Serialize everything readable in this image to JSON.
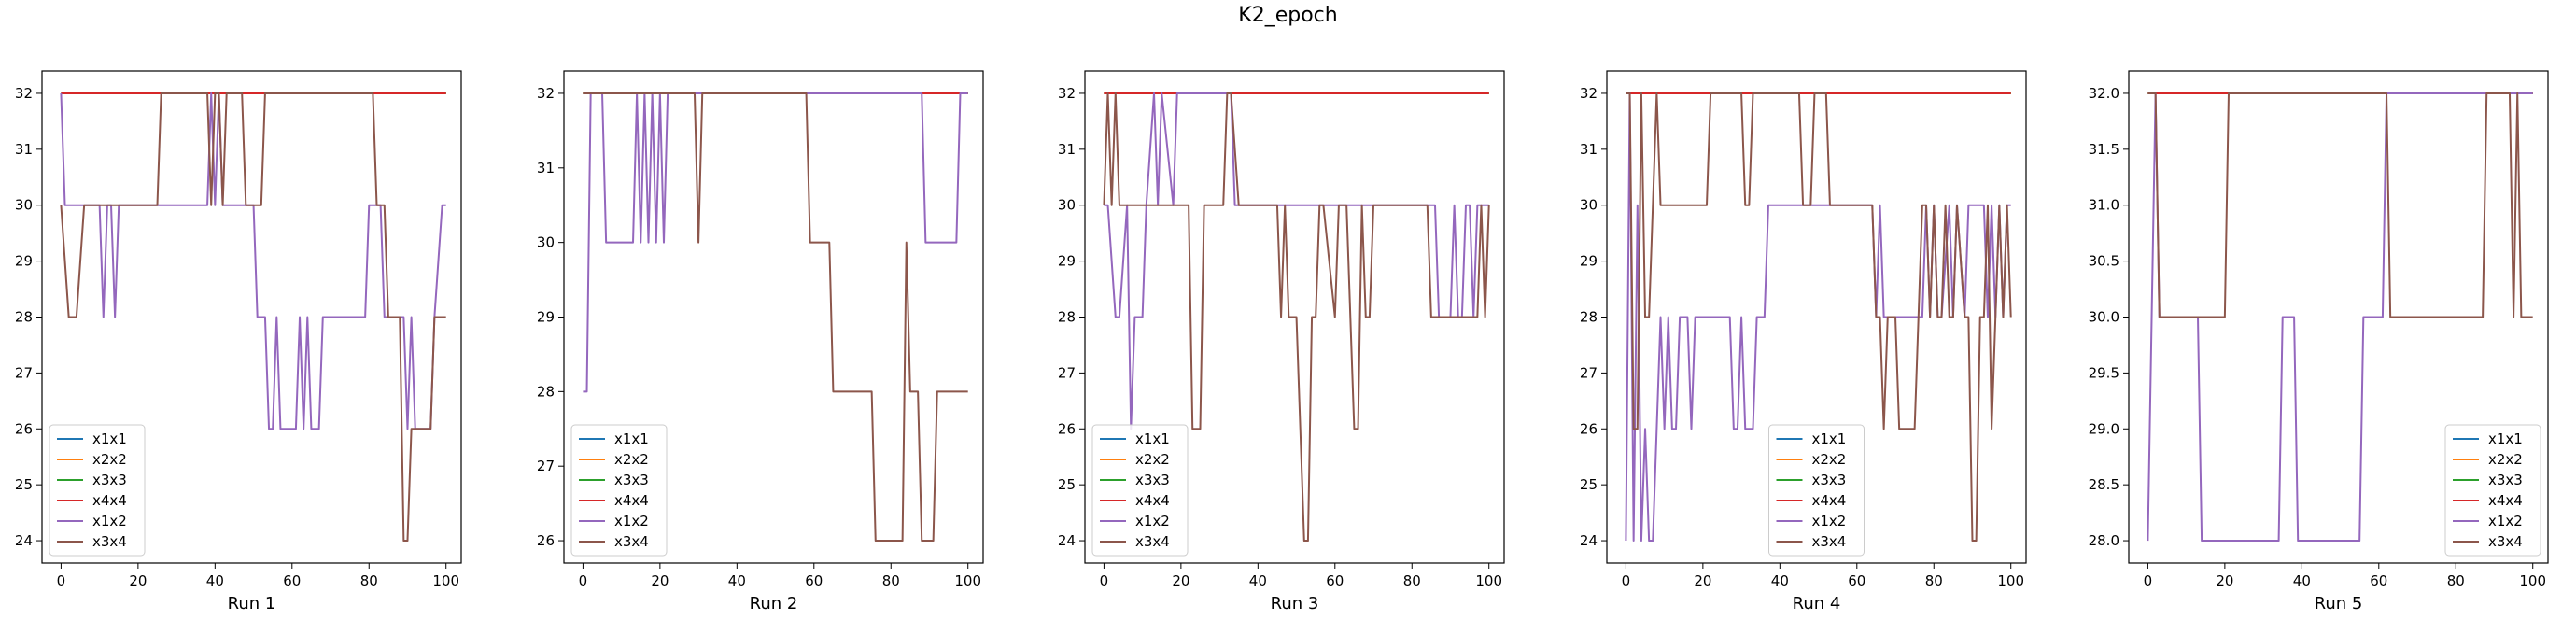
{
  "title": "K2_epoch",
  "chart_data": [
    {
      "type": "line",
      "xlabel": "Run 1",
      "xlim": [
        -4.95,
        103.95
      ],
      "ylim": [
        23.6,
        32.4
      ],
      "xticks": [
        0,
        20,
        40,
        60,
        80,
        100
      ],
      "yticks": [
        24,
        25,
        26,
        27,
        28,
        29,
        30,
        31,
        32
      ],
      "ytick_labels": [
        "24",
        "25",
        "26",
        "27",
        "28",
        "29",
        "30",
        "31",
        "32"
      ],
      "legend_position": "lower-left",
      "series": [
        {
          "name": "x1x1",
          "color": "#1f77b4",
          "x": [
            0,
            100
          ],
          "y": [
            32,
            32
          ]
        },
        {
          "name": "x2x2",
          "color": "#ff7f0e",
          "x": [
            0,
            100
          ],
          "y": [
            32,
            32
          ]
        },
        {
          "name": "x3x3",
          "color": "#2ca02c",
          "x": [
            0,
            100
          ],
          "y": [
            32,
            32
          ]
        },
        {
          "name": "x4x4",
          "color": "#d62728",
          "x": [
            0,
            100
          ],
          "y": [
            32,
            32
          ]
        },
        {
          "name": "x1x2",
          "color": "#9467bd",
          "x": [
            0,
            1,
            2,
            3,
            4,
            10,
            11,
            12,
            13,
            14,
            15,
            16,
            38,
            39,
            40,
            41,
            42,
            50,
            51,
            53,
            54,
            55,
            56,
            57,
            61,
            62,
            63,
            64,
            65,
            67,
            68,
            79,
            80,
            83,
            84,
            89,
            90,
            91,
            92,
            96,
            97,
            99,
            100
          ],
          "y": [
            32,
            30,
            30,
            30,
            30,
            30,
            28,
            30,
            30,
            28,
            30,
            30,
            30,
            32,
            30,
            32,
            30,
            30,
            28,
            28,
            26,
            26,
            28,
            26,
            26,
            28,
            26,
            28,
            26,
            26,
            28,
            28,
            30,
            30,
            28,
            28,
            26,
            28,
            26,
            26,
            28,
            30,
            30
          ]
        },
        {
          "name": "x3x4",
          "color": "#8c564b",
          "x": [
            0,
            2,
            4,
            6,
            25,
            26,
            38,
            39,
            40,
            41,
            42,
            43,
            47,
            48,
            52,
            53,
            68,
            69,
            81,
            82,
            84,
            85,
            88,
            89,
            90,
            91,
            96,
            97,
            100
          ],
          "y": [
            30,
            28,
            28,
            30,
            30,
            32,
            32,
            30,
            32,
            32,
            30,
            32,
            32,
            30,
            30,
            32,
            32,
            32,
            32,
            30,
            30,
            28,
            28,
            24,
            24,
            26,
            26,
            28,
            28
          ]
        }
      ]
    },
    {
      "type": "line",
      "xlabel": "Run 2",
      "xlim": [
        -4.95,
        103.95
      ],
      "ylim": [
        25.7,
        32.3
      ],
      "xticks": [
        0,
        20,
        40,
        60,
        80,
        100
      ],
      "yticks": [
        26,
        27,
        28,
        29,
        30,
        31,
        32
      ],
      "ytick_labels": [
        "26",
        "27",
        "28",
        "29",
        "30",
        "31",
        "32"
      ],
      "legend_position": "lower-left",
      "series": [
        {
          "name": "x1x1",
          "color": "#1f77b4",
          "x": [
            0,
            100
          ],
          "y": [
            32,
            32
          ]
        },
        {
          "name": "x2x2",
          "color": "#ff7f0e",
          "x": [
            0,
            100
          ],
          "y": [
            32,
            32
          ]
        },
        {
          "name": "x3x3",
          "color": "#2ca02c",
          "x": [
            0,
            100
          ],
          "y": [
            32,
            32
          ]
        },
        {
          "name": "x4x4",
          "color": "#d62728",
          "x": [
            0,
            100
          ],
          "y": [
            32,
            32
          ]
        },
        {
          "name": "x1x2",
          "color": "#9467bd",
          "x": [
            0,
            1,
            2,
            5,
            6,
            7,
            13,
            14,
            15,
            16,
            17,
            18,
            19,
            20,
            21,
            22,
            23,
            88,
            89,
            97,
            98,
            100
          ],
          "y": [
            28,
            28,
            32,
            32,
            30,
            30,
            30,
            32,
            30,
            32,
            30,
            32,
            30,
            32,
            30,
            32,
            32,
            32,
            30,
            30,
            32,
            32
          ]
        },
        {
          "name": "x3x4",
          "color": "#8c564b",
          "x": [
            0,
            1,
            29,
            30,
            31,
            32,
            58,
            59,
            64,
            65,
            75,
            76,
            83,
            84,
            85,
            87,
            88,
            91,
            92,
            100
          ],
          "y": [
            32,
            32,
            32,
            30,
            32,
            32,
            32,
            30,
            30,
            28,
            28,
            26,
            26,
            30,
            28,
            28,
            26,
            26,
            28,
            28
          ]
        }
      ]
    },
    {
      "type": "line",
      "xlabel": "Run 3",
      "xlim": [
        -4.95,
        103.95
      ],
      "ylim": [
        23.6,
        32.4
      ],
      "xticks": [
        0,
        20,
        40,
        60,
        80,
        100
      ],
      "yticks": [
        24,
        25,
        26,
        27,
        28,
        29,
        30,
        31,
        32
      ],
      "ytick_labels": [
        "24",
        "25",
        "26",
        "27",
        "28",
        "29",
        "30",
        "31",
        "32"
      ],
      "legend_position": "lower-left",
      "series": [
        {
          "name": "x1x1",
          "color": "#1f77b4",
          "x": [
            0,
            100
          ],
          "y": [
            32,
            32
          ]
        },
        {
          "name": "x2x2",
          "color": "#ff7f0e",
          "x": [
            0,
            100
          ],
          "y": [
            32,
            32
          ]
        },
        {
          "name": "x3x3",
          "color": "#2ca02c",
          "x": [
            0,
            100
          ],
          "y": [
            32,
            32
          ]
        },
        {
          "name": "x4x4",
          "color": "#d62728",
          "x": [
            0,
            100
          ],
          "y": [
            32,
            32
          ]
        },
        {
          "name": "x1x2",
          "color": "#9467bd",
          "x": [
            0,
            1,
            3,
            4,
            6,
            7,
            8,
            10,
            11,
            13,
            14,
            15,
            18,
            19,
            20,
            33,
            34,
            36,
            37,
            86,
            87,
            90,
            91,
            92,
            93,
            94,
            95,
            96,
            97,
            100
          ],
          "y": [
            30,
            30,
            28,
            28,
            30,
            26,
            28,
            28,
            30,
            32,
            30,
            32,
            30,
            32,
            32,
            32,
            30,
            30,
            30,
            30,
            28,
            28,
            30,
            28,
            28,
            30,
            30,
            28,
            30,
            30
          ]
        },
        {
          "name": "x3x4",
          "color": "#8c564b",
          "x": [
            0,
            1,
            2,
            3,
            4,
            22,
            23,
            25,
            26,
            31,
            32,
            33,
            35,
            45,
            46,
            47,
            48,
            49,
            50,
            51,
            52,
            53,
            54,
            55,
            56,
            57,
            60,
            61,
            62,
            63,
            65,
            66,
            67,
            68,
            69,
            70,
            71,
            72,
            73,
            84,
            85,
            97,
            98,
            99,
            100
          ],
          "y": [
            30,
            32,
            30,
            32,
            30,
            30,
            26,
            26,
            30,
            30,
            32,
            32,
            30,
            30,
            28,
            30,
            28,
            28,
            28,
            26,
            24,
            24,
            28,
            28,
            30,
            30,
            28,
            30,
            30,
            30,
            26,
            26,
            30,
            28,
            28,
            30,
            30,
            30,
            30,
            30,
            28,
            28,
            30,
            28,
            30
          ]
        }
      ]
    },
    {
      "type": "line",
      "xlabel": "Run 4",
      "xlim": [
        -4.95,
        103.95
      ],
      "ylim": [
        23.6,
        32.4
      ],
      "xticks": [
        0,
        20,
        40,
        60,
        80,
        100
      ],
      "yticks": [
        24,
        25,
        26,
        27,
        28,
        29,
        30,
        31,
        32
      ],
      "ytick_labels": [
        "24",
        "25",
        "26",
        "27",
        "28",
        "29",
        "30",
        "31",
        "32"
      ],
      "legend_position": "lower-center",
      "series": [
        {
          "name": "x1x1",
          "color": "#1f77b4",
          "x": [
            0,
            100
          ],
          "y": [
            32,
            32
          ]
        },
        {
          "name": "x2x2",
          "color": "#ff7f0e",
          "x": [
            0,
            100
          ],
          "y": [
            32,
            32
          ]
        },
        {
          "name": "x3x3",
          "color": "#2ca02c",
          "x": [
            0,
            100
          ],
          "y": [
            32,
            32
          ]
        },
        {
          "name": "x4x4",
          "color": "#d62728",
          "x": [
            0,
            100
          ],
          "y": [
            32,
            32
          ]
        },
        {
          "name": "x1x2",
          "color": "#9467bd",
          "x": [
            0,
            1,
            2,
            3,
            4,
            5,
            6,
            7,
            8,
            9,
            10,
            11,
            12,
            13,
            14,
            16,
            17,
            18,
            27,
            28,
            29,
            30,
            31,
            33,
            34,
            36,
            37,
            38,
            39,
            64,
            65,
            66,
            67,
            77,
            78,
            79,
            80,
            81,
            82,
            84,
            85,
            86,
            88,
            89,
            90,
            93,
            94,
            95,
            96,
            97,
            98,
            99,
            100
          ],
          "y": [
            24,
            32,
            24,
            30,
            24,
            26,
            24,
            24,
            26,
            28,
            26,
            28,
            26,
            26,
            28,
            28,
            26,
            28,
            28,
            26,
            26,
            28,
            26,
            26,
            28,
            28,
            30,
            30,
            30,
            30,
            28,
            30,
            28,
            28,
            30,
            28,
            30,
            28,
            28,
            30,
            28,
            30,
            28,
            30,
            30,
            30,
            28,
            30,
            28,
            30,
            28,
            30,
            30
          ]
        },
        {
          "name": "x3x4",
          "color": "#8c564b",
          "x": [
            0,
            1,
            2,
            3,
            4,
            5,
            6,
            7,
            8,
            9,
            10,
            21,
            22,
            23,
            30,
            31,
            32,
            33,
            45,
            46,
            48,
            49,
            52,
            53,
            64,
            65,
            66,
            67,
            68,
            70,
            71,
            75,
            76,
            77,
            78,
            79,
            80,
            81,
            82,
            83,
            84,
            85,
            86,
            88,
            89,
            90,
            91,
            92,
            93,
            94,
            95,
            96,
            97,
            98,
            99,
            100
          ],
          "y": [
            32,
            32,
            26,
            26,
            32,
            28,
            28,
            30,
            32,
            30,
            30,
            30,
            32,
            32,
            32,
            30,
            30,
            32,
            32,
            30,
            30,
            32,
            32,
            30,
            30,
            28,
            28,
            26,
            28,
            28,
            26,
            26,
            28,
            30,
            30,
            28,
            30,
            28,
            28,
            30,
            28,
            28,
            30,
            28,
            28,
            24,
            24,
            28,
            28,
            30,
            26,
            28,
            30,
            28,
            30,
            28
          ]
        }
      ]
    },
    {
      "type": "line",
      "xlabel": "Run 5",
      "xlim": [
        -4.95,
        103.95
      ],
      "ylim": [
        27.8,
        32.2
      ],
      "xticks": [
        0,
        20,
        40,
        60,
        80,
        100
      ],
      "yticks": [
        28.0,
        28.5,
        29.0,
        29.5,
        30.0,
        30.5,
        31.0,
        31.5,
        32.0
      ],
      "ytick_labels": [
        "28.0",
        "28.5",
        "29.0",
        "29.5",
        "30.0",
        "30.5",
        "31.0",
        "31.5",
        "32.0"
      ],
      "legend_position": "lower-right",
      "series": [
        {
          "name": "x1x1",
          "color": "#1f77b4",
          "x": [
            0,
            100
          ],
          "y": [
            32,
            32
          ]
        },
        {
          "name": "x2x2",
          "color": "#ff7f0e",
          "x": [
            0,
            100
          ],
          "y": [
            32,
            32
          ]
        },
        {
          "name": "x3x3",
          "color": "#2ca02c",
          "x": [
            0,
            100
          ],
          "y": [
            32,
            32
          ]
        },
        {
          "name": "x4x4",
          "color": "#d62728",
          "x": [
            0,
            100
          ],
          "y": [
            32,
            32
          ]
        },
        {
          "name": "x1x2",
          "color": "#9467bd",
          "x": [
            0,
            2,
            3,
            4,
            13,
            14,
            34,
            35,
            38,
            39,
            55,
            56,
            61,
            62,
            100
          ],
          "y": [
            28,
            32,
            30,
            30,
            30,
            28,
            28,
            30,
            30,
            28,
            28,
            30,
            30,
            32,
            32
          ]
        },
        {
          "name": "x3x4",
          "color": "#8c564b",
          "x": [
            0,
            1,
            2,
            3,
            20,
            21,
            62,
            63,
            87,
            88,
            94,
            95,
            96,
            97,
            98,
            100
          ],
          "y": [
            32,
            32,
            32,
            30,
            30,
            32,
            32,
            30,
            30,
            32,
            32,
            30,
            32,
            30,
            30,
            30
          ]
        }
      ]
    }
  ]
}
